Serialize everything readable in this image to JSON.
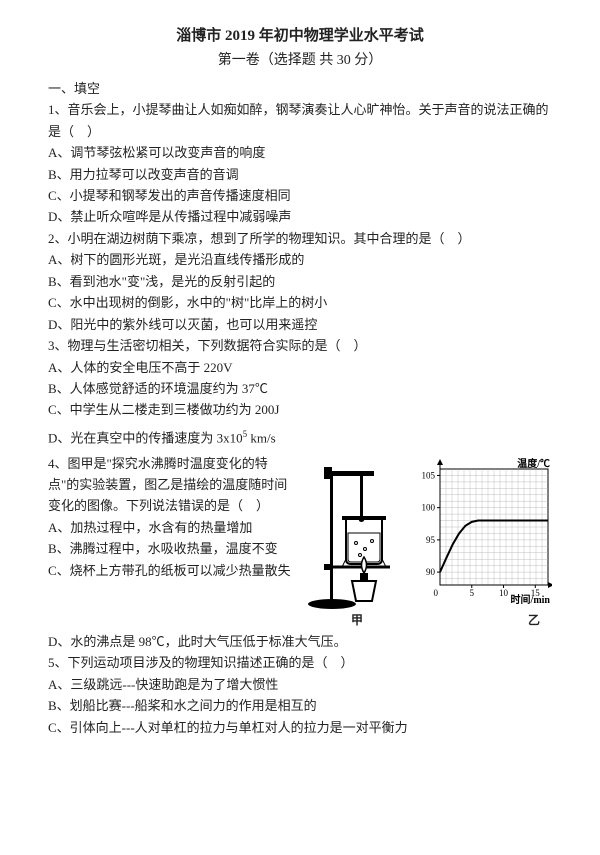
{
  "header": {
    "title": "淄博市 2019 年初中物理学业水平考试",
    "subtitle": "第一卷（选择题 共 30 分）"
  },
  "section1_label": "一、填空",
  "q1": {
    "stem": "1、音乐会上，小提琴曲让人如痴如醉，钢琴演奏让人心旷神怡。关于声音的说法正确的是（　）",
    "A": "A、调节琴弦松紧可以改变声音的响度",
    "B": "B、用力拉琴可以改变声音的音调",
    "C": "C、小提琴和钢琴发出的声音传播速度相同",
    "D": "D、禁止听众喧哗是从传播过程中减弱噪声"
  },
  "q2": {
    "stem": "2、小明在湖边树荫下乘凉，想到了所学的物理知识。其中合理的是（　）",
    "A": "A、树下的圆形光斑，是光沿直线传播形成的",
    "B": "B、看到池水\"变\"浅，是光的反射引起的",
    "C": "C、水中出现树的倒影，水中的\"树\"比岸上的树小",
    "D": "D、阳光中的紫外线可以灭菌，也可以用来遥控"
  },
  "q3": {
    "stem": "3、物理与生活密切相关，下列数据符合实际的是（　）",
    "A": "A、人体的安全电压不高于 220V",
    "B": "B、人体感觉舒适的环境温度约为 37℃",
    "C": "C、中学生从二楼走到三楼做功约为 200J",
    "D_pre": "D、光在真空中的传播速度为 3x10",
    "D_sup": "5",
    "D_post": " km/s"
  },
  "q4": {
    "stem": "4、图甲是\"探究水沸腾时温度变化的特点\"的实验装置，图乙是描绘的温度随时间变化的图像。下列说法错误的是（　）",
    "A": "A、加热过程中，水含有的热量增加",
    "B": "B、沸腾过程中，水吸收热量，温度不变",
    "C": "C、烧杯上方带孔的纸板可以减少热量散失",
    "D": "D、水的沸点是 98℃，此时大气压低于标准大气压。",
    "fig1_caption": "甲",
    "fig2_caption": "乙",
    "chart": {
      "y_label": "温度/℃",
      "x_label": "时间/min",
      "y_ticks": [
        90,
        95,
        100,
        105
      ],
      "x_ticks": [
        0,
        5,
        10,
        15
      ],
      "x_range": [
        0,
        17
      ],
      "y_range": [
        88,
        106
      ],
      "grid_color": "#b0b0b0",
      "curve_color": "#000000",
      "bg": "#ffffff",
      "boiling_temp": 98,
      "curve_x": [
        0,
        1,
        2,
        3,
        4,
        5,
        6,
        7,
        8,
        17
      ],
      "curve_y": [
        90,
        92.2,
        94.3,
        96,
        97.2,
        97.8,
        98,
        98,
        98,
        98
      ]
    }
  },
  "q5": {
    "stem": "5、下列运动项目涉及的物理知识描述正确的是（　）",
    "A": "A、三级跳远---快速助跑是为了增大惯性",
    "B": "B、划船比赛---船桨和水之间力的作用是相互的",
    "C": "C、引体向上---人对单杠的拉力与单杠对人的拉力是一对平衡力"
  }
}
